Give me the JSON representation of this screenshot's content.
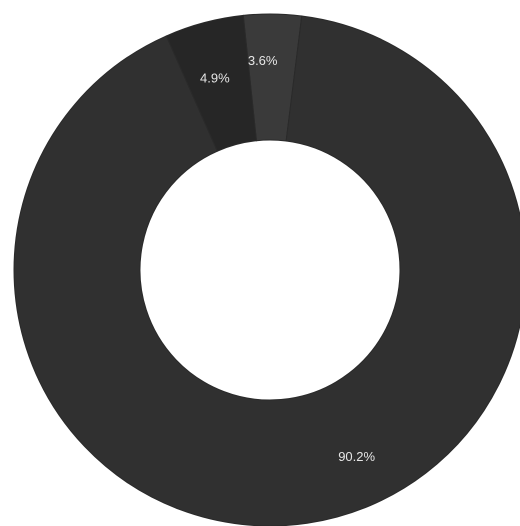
{
  "chart_data": {
    "type": "pie",
    "donut": true,
    "title": "",
    "legend": "none",
    "slices": [
      {
        "value": 90.2,
        "label": "90.2%",
        "color": "#303030"
      },
      {
        "value": 4.9,
        "label": "4.9%",
        "color": "#262626"
      },
      {
        "value": 3.6,
        "label": "3.6%",
        "color": "#3a3a3a"
      }
    ]
  }
}
